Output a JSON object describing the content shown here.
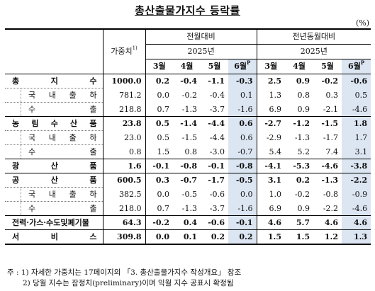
{
  "title": "총산출물가지수 등락률",
  "unit": "(%)",
  "header": {
    "weight_label": "가중치",
    "weight_sup": "1)",
    "group1": "전월대비",
    "group2": "전년동월대비",
    "year": "2025년",
    "months": [
      "3월",
      "4월",
      "5월",
      "6월"
    ],
    "prelim_sup": "P"
  },
  "rows": [
    {
      "label": "총지수",
      "weight": "1000.0",
      "mom": [
        "0.2",
        "-0.4",
        "-1.1",
        "-0.3"
      ],
      "yoy": [
        "2.5",
        "0.9",
        "-0.2",
        "-0.6"
      ]
    },
    {
      "label": "국내출하",
      "weight": "781.2",
      "mom": [
        "0.0",
        "-0.2",
        "-0.4",
        "0.1"
      ],
      "yoy": [
        "1.3",
        "0.8",
        "0.3",
        "0.5"
      ]
    },
    {
      "label": "수출",
      "weight": "218.8",
      "mom": [
        "0.7",
        "-1.3",
        "-3.7",
        "-1.6"
      ],
      "yoy": [
        "6.9",
        "0.9",
        "-2.1",
        "-4.6"
      ]
    },
    {
      "label": "농림수산품",
      "weight": "23.8",
      "mom": [
        "0.5",
        "-1.4",
        "-4.4",
        "0.6"
      ],
      "yoy": [
        "-2.7",
        "-1.2",
        "-1.5",
        "1.8"
      ]
    },
    {
      "label": "국내출하",
      "weight": "23.0",
      "mom": [
        "0.5",
        "-1.5",
        "-4.4",
        "0.6"
      ],
      "yoy": [
        "-2.9",
        "-1.3",
        "-1.7",
        "1.7"
      ]
    },
    {
      "label": "수출",
      "weight": "0.8",
      "mom": [
        "1.5",
        "0.8",
        "-3.0",
        "-0.7"
      ],
      "yoy": [
        "5.4",
        "5.2",
        "7.4",
        "3.1"
      ]
    },
    {
      "label": "광산품",
      "weight": "1.6",
      "mom": [
        "-0.1",
        "-0.8",
        "-0.1",
        "-0.8"
      ],
      "yoy": [
        "-4.1",
        "-5.3",
        "-4.6",
        "-3.8"
      ]
    },
    {
      "label": "공산품",
      "weight": "600.5",
      "mom": [
        "0.3",
        "-0.7",
        "-1.7",
        "-0.5"
      ],
      "yoy": [
        "3.1",
        "0.2",
        "-1.3",
        "-2.2"
      ]
    },
    {
      "label": "국내출하",
      "weight": "382.5",
      "mom": [
        "0.0",
        "-0.5",
        "-0.6",
        "0.0"
      ],
      "yoy": [
        "1.0",
        "-0.2",
        "-0.8",
        "-0.9"
      ]
    },
    {
      "label": "수출",
      "weight": "218.0",
      "mom": [
        "0.7",
        "-1.3",
        "-3.7",
        "-1.6"
      ],
      "yoy": [
        "6.9",
        "0.9",
        "-2.2",
        "-4.6"
      ]
    },
    {
      "label": "전력·가스·수도및폐기물",
      "weight": "64.3",
      "mom": [
        "-0.2",
        "0.4",
        "-0.6",
        "-0.1"
      ],
      "yoy": [
        "4.6",
        "5.7",
        "4.6",
        "4.6"
      ]
    },
    {
      "label": "서비스",
      "weight": "309.8",
      "mom": [
        "0.0",
        "0.1",
        "0.2",
        "0.2"
      ],
      "yoy": [
        "1.5",
        "1.5",
        "1.2",
        "1.3"
      ]
    }
  ],
  "notes": {
    "note1": "주 : 1) 자세한 가중치는 17페이지의 「3. 총산출물가지수 작성개요」 참조",
    "note2": "2) 당월 지수는 잠정치(preliminary)이며 익월 지수 공표시 확정됨"
  }
}
